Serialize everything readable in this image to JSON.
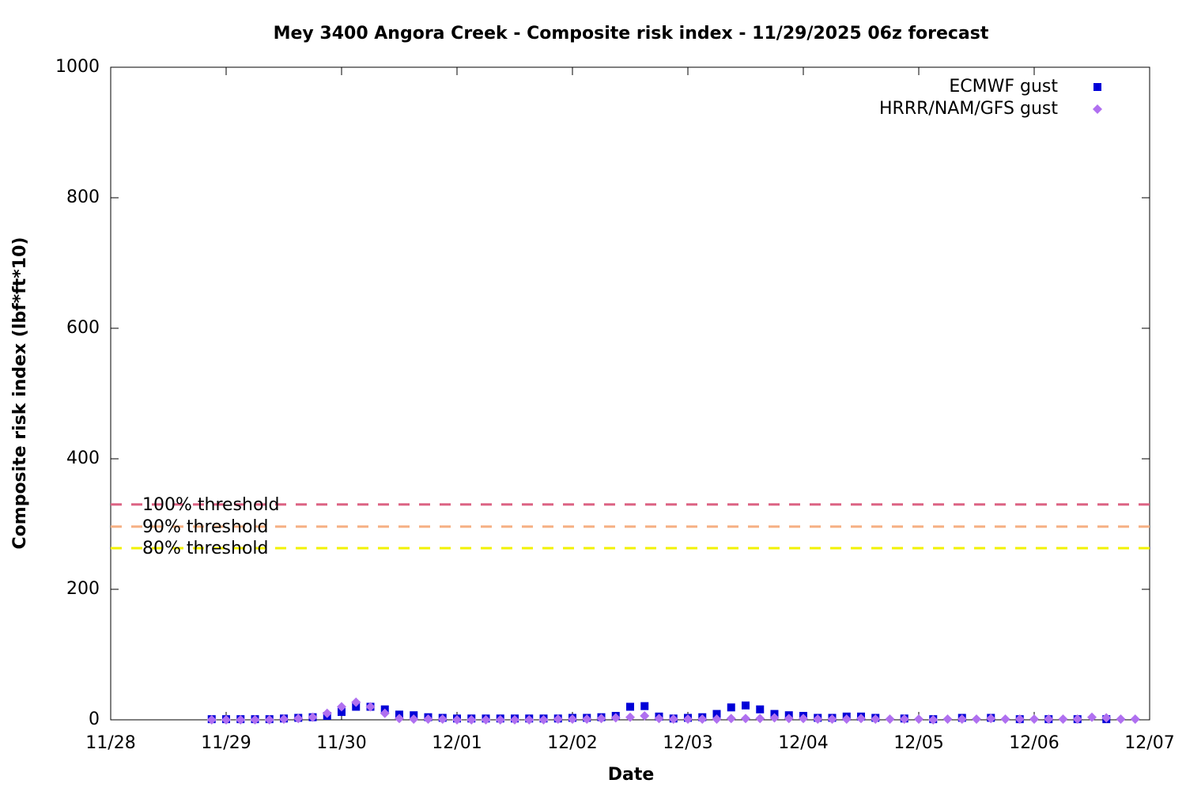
{
  "chart_data": {
    "type": "scatter",
    "title": "Mey 3400 Angora Creek - Composite risk index - 11/29/2025 06z forecast",
    "x_label": "Date",
    "y_label": "Composite risk index (lbf*ft*10)",
    "xlim": [
      0,
      9
    ],
    "ylim": [
      0,
      1000
    ],
    "xticks": [
      {
        "value": 0,
        "label": "11/28"
      },
      {
        "value": 1,
        "label": "11/29"
      },
      {
        "value": 2,
        "label": "11/30"
      },
      {
        "value": 3,
        "label": "12/01"
      },
      {
        "value": 4,
        "label": "12/02"
      },
      {
        "value": 5,
        "label": "12/03"
      },
      {
        "value": 6,
        "label": "12/04"
      },
      {
        "value": 7,
        "label": "12/05"
      },
      {
        "value": 8,
        "label": "12/06"
      },
      {
        "value": 9,
        "label": "12/07"
      }
    ],
    "yticks": [
      0,
      200,
      400,
      600,
      800,
      1000
    ],
    "legend": "top-right",
    "thresholds": [
      {
        "label": "100% threshold",
        "value": 330,
        "color": "#dc6384"
      },
      {
        "label": "90% threshold",
        "value": 296,
        "color": "#f6b084"
      },
      {
        "label": "80% threshold",
        "value": 263,
        "color": "#f2f200"
      }
    ],
    "series": [
      {
        "name": "ECMWF gust",
        "color": "#0000d8",
        "marker": "square",
        "x": [
          0.875,
          1,
          1.125,
          1.25,
          1.375,
          1.5,
          1.625,
          1.75,
          1.875,
          2,
          2.125,
          2.25,
          2.375,
          2.5,
          2.625,
          2.75,
          2.875,
          3,
          3.125,
          3.25,
          3.375,
          3.5,
          3.625,
          3.75,
          3.875,
          4,
          4.125,
          4.25,
          4.375,
          4.5,
          4.625,
          4.75,
          4.875,
          5,
          5.125,
          5.25,
          5.375,
          5.5,
          5.625,
          5.75,
          5.875,
          6,
          6.125,
          6.25,
          6.375,
          6.5,
          6.625,
          6.875,
          7.125,
          7.375,
          7.625,
          7.875,
          8.125,
          8.375,
          8.625
        ],
        "values": [
          1,
          1,
          1,
          1,
          1,
          2,
          3,
          4,
          6,
          12,
          20,
          20,
          16,
          8,
          7,
          4,
          3,
          2,
          2,
          2,
          2,
          2,
          2,
          2,
          2,
          3,
          3,
          4,
          6,
          20,
          21,
          5,
          2,
          3,
          4,
          9,
          19,
          22,
          16,
          9,
          7,
          6,
          3,
          3,
          5,
          5,
          3,
          2,
          1,
          3,
          3,
          1,
          1,
          1,
          1
        ]
      },
      {
        "name": "HRRR/NAM/GFS gust",
        "color": "#b070f0",
        "marker": "diamond",
        "x": [
          0.875,
          1,
          1.125,
          1.25,
          1.375,
          1.5,
          1.625,
          1.75,
          1.875,
          2,
          2.125,
          2.25,
          2.375,
          2.5,
          2.625,
          2.75,
          2.875,
          3,
          3.125,
          3.25,
          3.375,
          3.5,
          3.625,
          3.75,
          3.875,
          4,
          4.125,
          4.25,
          4.375,
          4.5,
          4.625,
          4.75,
          4.875,
          5,
          5.125,
          5.25,
          5.375,
          5.5,
          5.625,
          5.75,
          5.875,
          6,
          6.125,
          6.25,
          6.375,
          6.5,
          6.625,
          6.75,
          6.875,
          7,
          7.125,
          7.25,
          7.375,
          7.5,
          7.625,
          7.75,
          7.875,
          8,
          8.125,
          8.25,
          8.375,
          8.5,
          8.625,
          8.75,
          8.875
        ],
        "values": [
          0,
          0,
          0,
          0,
          0,
          1,
          2,
          4,
          10,
          20,
          27,
          20,
          10,
          2,
          1,
          1,
          1,
          0,
          0,
          0,
          0,
          0,
          0,
          0,
          1,
          1,
          1,
          2,
          3,
          4,
          6,
          2,
          1,
          1,
          1,
          1,
          2,
          2,
          2,
          3,
          2,
          2,
          1,
          1,
          1,
          2,
          1,
          1,
          1,
          1,
          0,
          1,
          1,
          1,
          2,
          1,
          1,
          1,
          1,
          1,
          1,
          4,
          3,
          1,
          1
        ]
      }
    ]
  }
}
